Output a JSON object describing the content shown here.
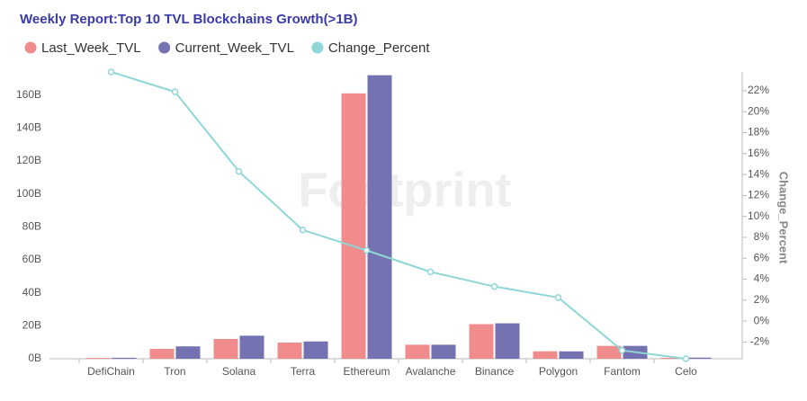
{
  "chart_data": {
    "type": "bar_line",
    "title": "Weekly Report:Top 10 TVL Blockchains Growth(>1B)",
    "watermark": "Footprint",
    "y2label": "Change_Percent",
    "categories": [
      "DefiChain",
      "Tron",
      "Solana",
      "Terra",
      "Ethereum",
      "Avalanche",
      "Binance",
      "Polygon",
      "Fantom",
      "Celo"
    ],
    "series": [
      {
        "name": "Last_Week_TVL",
        "color": "#f08c8c",
        "type": "bar",
        "values": [
          0.5,
          6,
          12,
          9.8,
          161,
          8.5,
          21,
          4.5,
          7.8,
          0.6
        ]
      },
      {
        "name": "Current_Week_TVL",
        "color": "#7472b0",
        "type": "bar",
        "values": [
          0.6,
          7.5,
          14,
          10.5,
          172,
          8.5,
          21.5,
          4.5,
          7.8,
          0.7
        ]
      },
      {
        "name": "Change_Percent",
        "color": "#8fd6d6",
        "type": "line",
        "axis": "y2",
        "values": [
          23.8,
          21.9,
          14.3,
          8.7,
          6.75,
          4.7,
          3.3,
          2.25,
          -2.8,
          -3.6
        ]
      }
    ],
    "ylim": [
      0,
      174
    ],
    "yticks": [
      {
        "value": 0,
        "label": "0B"
      },
      {
        "value": 20,
        "label": "20B"
      },
      {
        "value": 40,
        "label": "40B"
      },
      {
        "value": 60,
        "label": "60B"
      },
      {
        "value": 80,
        "label": "80B"
      },
      {
        "value": 100,
        "label": "100B"
      },
      {
        "value": 120,
        "label": "120B"
      },
      {
        "value": 140,
        "label": "140B"
      },
      {
        "value": 160,
        "label": "160B"
      }
    ],
    "y2lim": [
      -3.6,
      23.8
    ],
    "y2ticks": [
      {
        "value": -2,
        "label": "-2%"
      },
      {
        "value": 0,
        "label": "0%"
      },
      {
        "value": 2,
        "label": "2%"
      },
      {
        "value": 4,
        "label": "4%"
      },
      {
        "value": 6,
        "label": "6%"
      },
      {
        "value": 8,
        "label": "8%"
      },
      {
        "value": 10,
        "label": "10%"
      },
      {
        "value": 12,
        "label": "12%"
      },
      {
        "value": 14,
        "label": "14%"
      },
      {
        "value": 16,
        "label": "16%"
      },
      {
        "value": 18,
        "label": "18%"
      },
      {
        "value": 20,
        "label": "20%"
      },
      {
        "value": 22,
        "label": "22%"
      }
    ]
  }
}
